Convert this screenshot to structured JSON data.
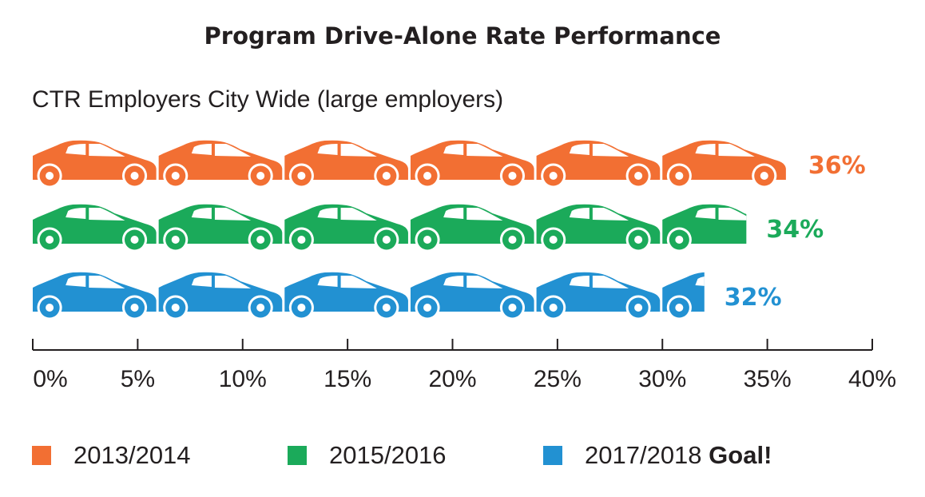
{
  "chart_data": {
    "type": "bar",
    "title": "Program Drive-Alone Rate Performance",
    "subtitle": "CTR Employers City Wide (large employers)",
    "xlabel": "",
    "ylabel": "",
    "unit_per_icon": 6,
    "xlim": [
      0,
      40
    ],
    "ticks": [
      0,
      5,
      10,
      15,
      20,
      25,
      30,
      35,
      40
    ],
    "tick_labels": [
      "0%",
      "5%",
      "10%",
      "15%",
      "20%",
      "25%",
      "30%",
      "35%",
      "40%"
    ],
    "series": [
      {
        "name": "2013/2014",
        "value": 36,
        "label": "36%",
        "color": "#F26F33"
      },
      {
        "name": "2015/2016",
        "value": 34,
        "label": "34%",
        "color": "#1BAA5A"
      },
      {
        "name": "2017/2018",
        "suffix": "Goal!",
        "value": 32,
        "label": "32%",
        "color": "#2291D2"
      }
    ],
    "grid": false,
    "legend": "bottom",
    "icon": "car-icon"
  }
}
